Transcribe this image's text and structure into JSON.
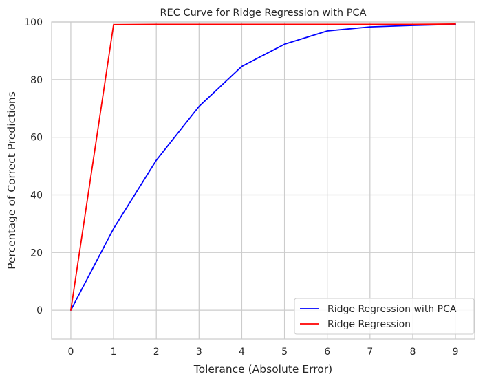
{
  "chart_data": {
    "type": "line",
    "title": "REC Curve for Ridge Regression with PCA",
    "xlabel": "Tolerance (Absolute Error)",
    "ylabel": "Percentage of Correct Predictions",
    "xlim": [
      -0.45,
      9.45
    ],
    "ylim": [
      -10,
      100
    ],
    "xticks": [
      0,
      1,
      2,
      3,
      4,
      5,
      6,
      7,
      8,
      9
    ],
    "yticks": [
      0,
      20,
      40,
      60,
      80,
      100
    ],
    "grid": true,
    "legend_position": "lower-right",
    "series": [
      {
        "name": "Ridge Regression with PCA",
        "color": "#0000ff",
        "x": [
          0,
          1,
          2,
          3,
          4,
          5,
          6,
          7,
          8,
          9
        ],
        "y": [
          0,
          28.3,
          52,
          70.7,
          84.6,
          92.3,
          96.9,
          98.3,
          98.8,
          99.2
        ]
      },
      {
        "name": "Ridge Regression",
        "color": "#ff0000",
        "x": [
          0,
          1,
          2,
          3,
          4,
          5,
          6,
          7,
          8,
          9
        ],
        "y": [
          0,
          99.1,
          99.2,
          99.2,
          99.2,
          99.2,
          99.2,
          99.2,
          99.2,
          99.3
        ]
      }
    ]
  }
}
